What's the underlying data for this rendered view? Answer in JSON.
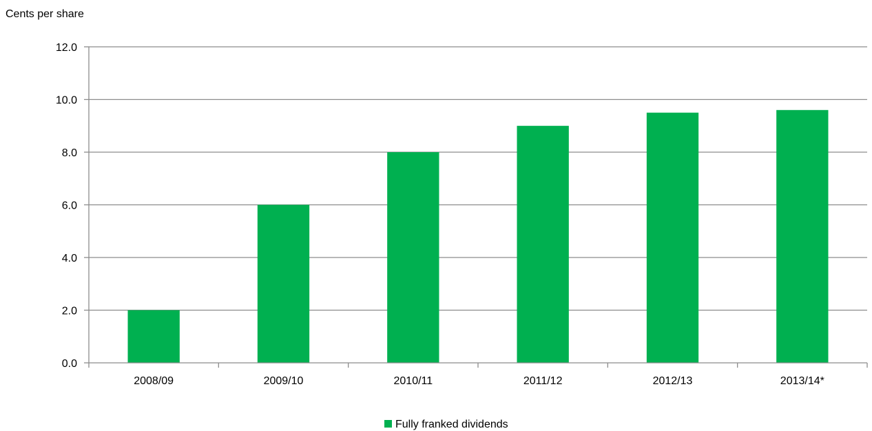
{
  "chart_data": {
    "type": "bar",
    "ylabel": "Cents per share",
    "categories": [
      "2008/09",
      "2009/10",
      "2010/11",
      "2011/12",
      "2012/13",
      "2013/14*"
    ],
    "series": [
      {
        "name": "Fully franked dividends",
        "values": [
          2.0,
          6.0,
          8.0,
          9.0,
          9.5,
          9.6
        ],
        "color": "#00b050"
      }
    ],
    "ylim": [
      0,
      12
    ],
    "yticks": [
      "0.0",
      "2.0",
      "4.0",
      "6.0",
      "8.0",
      "10.0",
      "12.0"
    ],
    "grid": true,
    "legend": "bottom-center",
    "colors": {
      "grid": "#8c8c8c",
      "axis": "#8c8c8c"
    }
  }
}
